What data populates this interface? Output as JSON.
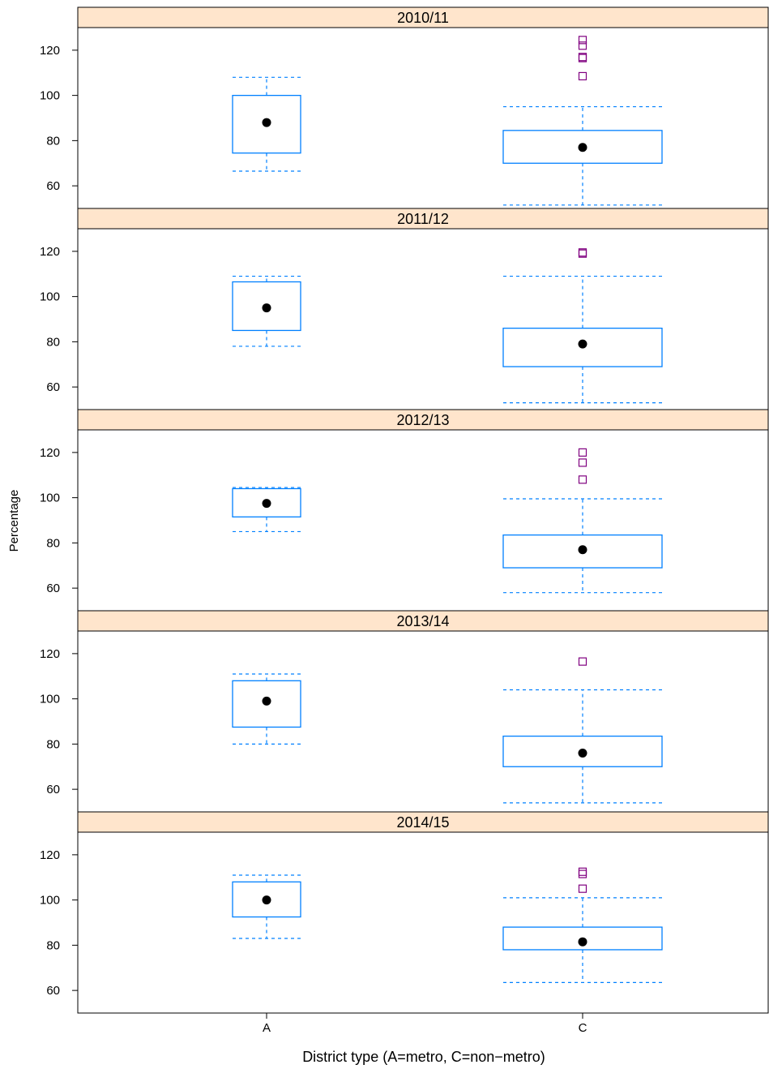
{
  "chart_data": {
    "type": "box",
    "xlabel": "District type (A=metro, C=non−metro)",
    "ylabel": "Percentage",
    "categories": [
      "A",
      "C"
    ],
    "y_ticks": [
      60,
      80,
      100,
      120
    ],
    "ylim": [
      50,
      130
    ],
    "colors": {
      "box": "#0080ff",
      "outlier": "#800080",
      "median": "#000000",
      "strip_bg": "#ffe5cc"
    },
    "panels": [
      {
        "label": "2010/11",
        "boxes": [
          {
            "category": "A",
            "lower_whisker": 66.5,
            "q1": 74.5,
            "median": 88,
            "q3": 100,
            "upper_whisker": 108,
            "outliers": []
          },
          {
            "category": "C",
            "lower_whisker": 51.5,
            "q1": 70,
            "median": 77,
            "q3": 84.5,
            "upper_whisker": 95,
            "outliers": [
              108.5,
              116.5,
              117,
              122,
              124.5
            ]
          }
        ]
      },
      {
        "label": "2011/12",
        "boxes": [
          {
            "category": "A",
            "lower_whisker": 78,
            "q1": 85,
            "median": 95,
            "q3": 106.5,
            "upper_whisker": 109,
            "outliers": []
          },
          {
            "category": "C",
            "lower_whisker": 53,
            "q1": 69,
            "median": 79,
            "q3": 86,
            "upper_whisker": 109,
            "outliers": [
              119,
              119.5
            ]
          }
        ]
      },
      {
        "label": "2012/13",
        "boxes": [
          {
            "category": "A",
            "lower_whisker": 85,
            "q1": 91.5,
            "median": 97.5,
            "q3": 104,
            "upper_whisker": 104.5,
            "outliers": []
          },
          {
            "category": "C",
            "lower_whisker": 58,
            "q1": 69,
            "median": 77,
            "q3": 83.5,
            "upper_whisker": 99.5,
            "outliers": [
              108,
              115.5,
              120
            ]
          }
        ]
      },
      {
        "label": "2013/14",
        "boxes": [
          {
            "category": "A",
            "lower_whisker": 80,
            "q1": 87.5,
            "median": 99,
            "q3": 108,
            "upper_whisker": 111,
            "outliers": []
          },
          {
            "category": "C",
            "lower_whisker": 54,
            "q1": 70,
            "median": 76,
            "q3": 83.5,
            "upper_whisker": 104,
            "outliers": [
              116.5
            ]
          }
        ]
      },
      {
        "label": "2014/15",
        "boxes": [
          {
            "category": "A",
            "lower_whisker": 83,
            "q1": 92.5,
            "median": 100,
            "q3": 108,
            "upper_whisker": 111,
            "outliers": []
          },
          {
            "category": "C",
            "lower_whisker": 63.5,
            "q1": 78,
            "median": 81.5,
            "q3": 88,
            "upper_whisker": 101,
            "outliers": [
              105,
              111.5,
              112.5
            ]
          }
        ]
      }
    ]
  }
}
